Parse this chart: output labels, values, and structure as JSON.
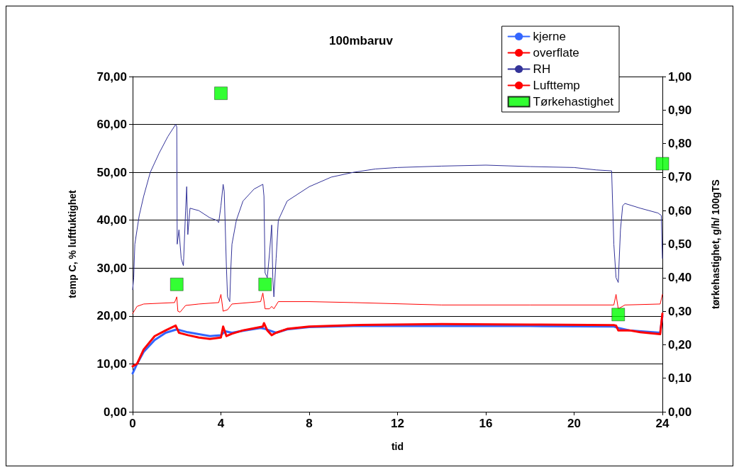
{
  "chart_data": {
    "type": "line",
    "title": "100mbaruv",
    "xlabel": "tid",
    "ylabel": "temp C, % luftfuktighet",
    "y2label": "tørkehastighet, g/h/ 100gTS",
    "xlim": [
      0,
      24
    ],
    "xticks": [
      0,
      4,
      8,
      12,
      16,
      20,
      24
    ],
    "ylim": [
      0,
      70
    ],
    "yticks": [
      {
        "value": 0,
        "label": "0,00"
      },
      {
        "value": 10,
        "label": "10,00"
      },
      {
        "value": 20,
        "label": "20,00"
      },
      {
        "value": 30,
        "label": "30,00"
      },
      {
        "value": 40,
        "label": "40,00"
      },
      {
        "value": 50,
        "label": "50,00"
      },
      {
        "value": 60,
        "label": "60,00"
      },
      {
        "value": 70,
        "label": "70,00"
      }
    ],
    "y2lim": [
      0,
      1
    ],
    "y2ticks": [
      {
        "value": 0,
        "label": "0,00"
      },
      {
        "value": 0.1,
        "label": "0,10"
      },
      {
        "value": 0.2,
        "label": "0,20"
      },
      {
        "value": 0.3,
        "label": "0,30"
      },
      {
        "value": 0.4,
        "label": "0,40"
      },
      {
        "value": 0.5,
        "label": "0,50"
      },
      {
        "value": 0.6,
        "label": "0,60"
      },
      {
        "value": 0.7,
        "label": "0,70"
      },
      {
        "value": 0.8,
        "label": "0,80"
      },
      {
        "value": 0.9,
        "label": "0,90"
      },
      {
        "value": 1,
        "label": "1,00"
      }
    ],
    "grid": "y",
    "legend": "top right",
    "marker": "none",
    "line_style": "solid",
    "series": [
      {
        "name": "kjerne",
        "color": "#3366ff",
        "x": [
          0,
          0.2,
          0.5,
          1,
          1.5,
          2,
          2.5,
          3,
          3.5,
          4,
          4.2,
          4.5,
          5,
          5.8,
          6,
          6.5,
          7,
          8,
          10,
          14,
          18,
          21.8,
          22,
          22.5,
          23.9,
          24
        ],
        "values": [
          8,
          10,
          12.5,
          15,
          16.5,
          17.2,
          16.6,
          16.2,
          15.8,
          16,
          16.8,
          16.5,
          16.9,
          17.5,
          17.3,
          16.5,
          17.2,
          17.7,
          17.9,
          17.9,
          17.9,
          17.8,
          17.5,
          17,
          16.5,
          20
        ]
      },
      {
        "name": "overflate",
        "color": "#ff0000",
        "x": [
          0,
          0.2,
          0.5,
          1,
          1.5,
          1.95,
          2.1,
          2.5,
          3,
          3.5,
          4,
          4.1,
          4.25,
          4.5,
          5,
          5.9,
          5.95,
          6.1,
          6.3,
          6.5,
          7,
          8,
          10,
          14,
          18,
          21.8,
          21.9,
          22,
          22.5,
          23,
          23.9,
          24
        ],
        "values": [
          9.5,
          10,
          13,
          15.8,
          17,
          18,
          16.5,
          16,
          15.5,
          15.2,
          15.5,
          17.8,
          15.8,
          16.3,
          17,
          17.8,
          18.5,
          17,
          16,
          16.5,
          17.3,
          17.8,
          18.1,
          18.3,
          18.2,
          18.1,
          18,
          17,
          17,
          16.6,
          16.2,
          20.5
        ]
      },
      {
        "name": "RH",
        "color": "#333399",
        "x": [
          0,
          0.05,
          0.1,
          0.2,
          0.3,
          0.5,
          0.8,
          1.2,
          1.6,
          1.95,
          2,
          2.02,
          2.1,
          2.2,
          2.3,
          2.4,
          2.45,
          2.5,
          2.6,
          3,
          3.5,
          3.8,
          3.9,
          4,
          4.1,
          4.15,
          4.25,
          4.3,
          4.4,
          4.45,
          4.5,
          4.7,
          5,
          5.5,
          5.9,
          5.95,
          6,
          6.1,
          6.2,
          6.3,
          6.35,
          6.4,
          6.5,
          6.6,
          7,
          8,
          9,
          10,
          11,
          12,
          14,
          16,
          18,
          20,
          21,
          21.7,
          21.8,
          21.9,
          22,
          22.1,
          22.2,
          22.3,
          23,
          23.8,
          23.95,
          24
        ],
        "values": [
          25.5,
          28,
          35,
          38,
          41,
          45,
          50,
          54,
          57.5,
          60,
          59.5,
          35,
          38,
          32,
          30.5,
          42,
          47,
          37,
          42.5,
          42,
          40.5,
          40,
          39.5,
          43,
          47.5,
          46,
          30,
          24,
          23,
          30,
          35,
          40,
          44,
          46.5,
          47.5,
          45,
          29,
          28,
          33,
          39,
          28,
          24,
          32,
          40,
          44,
          47,
          49,
          50,
          50.7,
          51,
          51.3,
          51.5,
          51.2,
          51,
          50.5,
          50.3,
          35,
          28,
          27,
          38,
          43,
          43.5,
          42.5,
          41.5,
          41,
          32
        ]
      },
      {
        "name": "Lufttemp",
        "color": "#ff0000",
        "x": [
          0,
          0.2,
          0.5,
          1.9,
          2,
          2.05,
          2.15,
          2.4,
          3,
          3.9,
          4,
          4.1,
          4.3,
          4.5,
          5.8,
          5.9,
          6,
          6.2,
          6.3,
          6.4,
          6.6,
          8,
          10,
          14,
          18,
          21.8,
          21.9,
          22,
          22.3,
          23.9,
          24
        ],
        "values": [
          20.5,
          22,
          22.5,
          22.8,
          24,
          21,
          20.8,
          22.2,
          22.5,
          22.8,
          24.5,
          21,
          21.3,
          22.5,
          23,
          24.8,
          21.5,
          21.5,
          22,
          21.5,
          23,
          23,
          22.8,
          22.3,
          22.3,
          22.3,
          24.5,
          21.5,
          22.3,
          22.5,
          24.5
        ]
      },
      {
        "name": "Tørkehastighet",
        "type": "scatter",
        "axis": "y2",
        "marker": "square",
        "color": "#00ff00",
        "x": [
          2,
          4,
          6,
          22,
          24
        ],
        "values": [
          0.38,
          0.95,
          0.38,
          0.29,
          0.74
        ]
      }
    ]
  }
}
